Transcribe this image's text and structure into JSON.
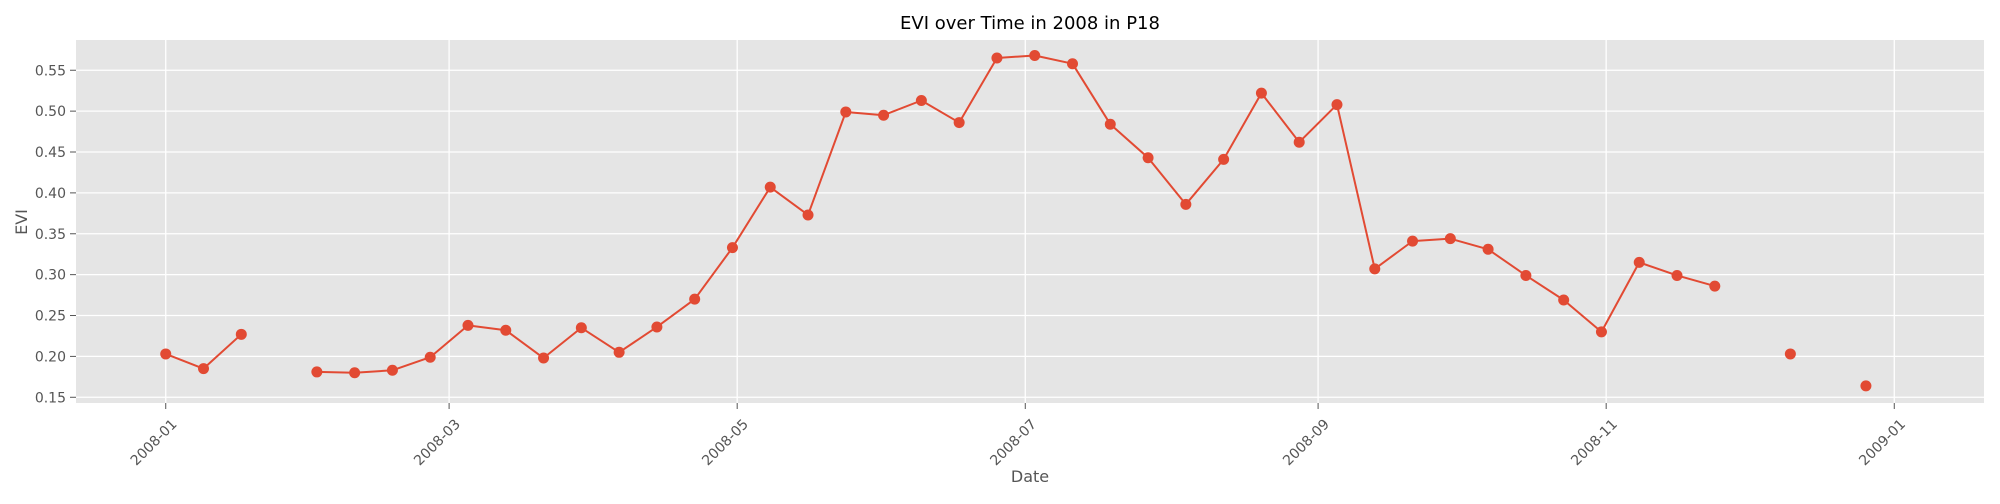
{
  "chart_data": {
    "type": "line",
    "title": "EVI over Time in 2008 in P18",
    "xlabel": "Date",
    "ylabel": "EVI",
    "x_ticks": [
      "2008-01",
      "2008-03",
      "2008-05",
      "2008-07",
      "2008-09",
      "2008-11",
      "2009-01"
    ],
    "y_ticks": [
      "0.15",
      "0.20",
      "0.25",
      "0.30",
      "0.35",
      "0.40",
      "0.45",
      "0.50",
      "0.55"
    ],
    "ylim": [
      0.143,
      0.587
    ],
    "xlim": [
      "2007-12-13",
      "2009-01-20"
    ],
    "grid": true,
    "colors": {
      "line": "#e24a33",
      "background": "#e5e5e5",
      "grid": "#ffffff"
    },
    "series": [
      {
        "x": [
          "2008-01-01",
          "2008-01-09",
          "2008-01-17",
          "2008-01-25",
          "2008-02-02",
          "2008-02-10",
          "2008-02-18",
          "2008-02-26",
          "2008-03-05",
          "2008-03-13",
          "2008-03-21",
          "2008-03-29",
          "2008-04-06",
          "2008-04-14",
          "2008-04-22",
          "2008-04-30",
          "2008-05-08",
          "2008-05-16",
          "2008-05-24",
          "2008-06-01",
          "2008-06-09",
          "2008-06-17",
          "2008-06-25",
          "2008-07-03",
          "2008-07-11",
          "2008-07-19",
          "2008-07-27",
          "2008-08-04",
          "2008-08-12",
          "2008-08-20",
          "2008-08-28",
          "2008-09-05",
          "2008-09-13",
          "2008-09-21",
          "2008-09-29",
          "2008-10-07",
          "2008-10-15",
          "2008-10-23",
          "2008-10-31",
          "2008-11-08",
          "2008-11-16",
          "2008-11-24",
          "2008-12-02",
          "2008-12-10",
          "2008-12-18",
          "2008-12-26"
        ],
        "values": [
          0.203,
          0.185,
          0.227,
          null,
          0.181,
          0.18,
          0.183,
          0.199,
          0.238,
          0.232,
          0.198,
          0.235,
          0.205,
          0.236,
          0.27,
          0.333,
          0.407,
          0.373,
          0.499,
          0.495,
          0.513,
          0.486,
          0.565,
          0.568,
          0.558,
          0.484,
          0.443,
          0.386,
          0.441,
          0.522,
          0.462,
          0.508,
          0.307,
          0.341,
          0.344,
          0.331,
          0.299,
          0.269,
          0.23,
          0.315,
          0.299,
          0.286,
          null,
          0.203,
          null,
          0.164
        ]
      }
    ]
  }
}
